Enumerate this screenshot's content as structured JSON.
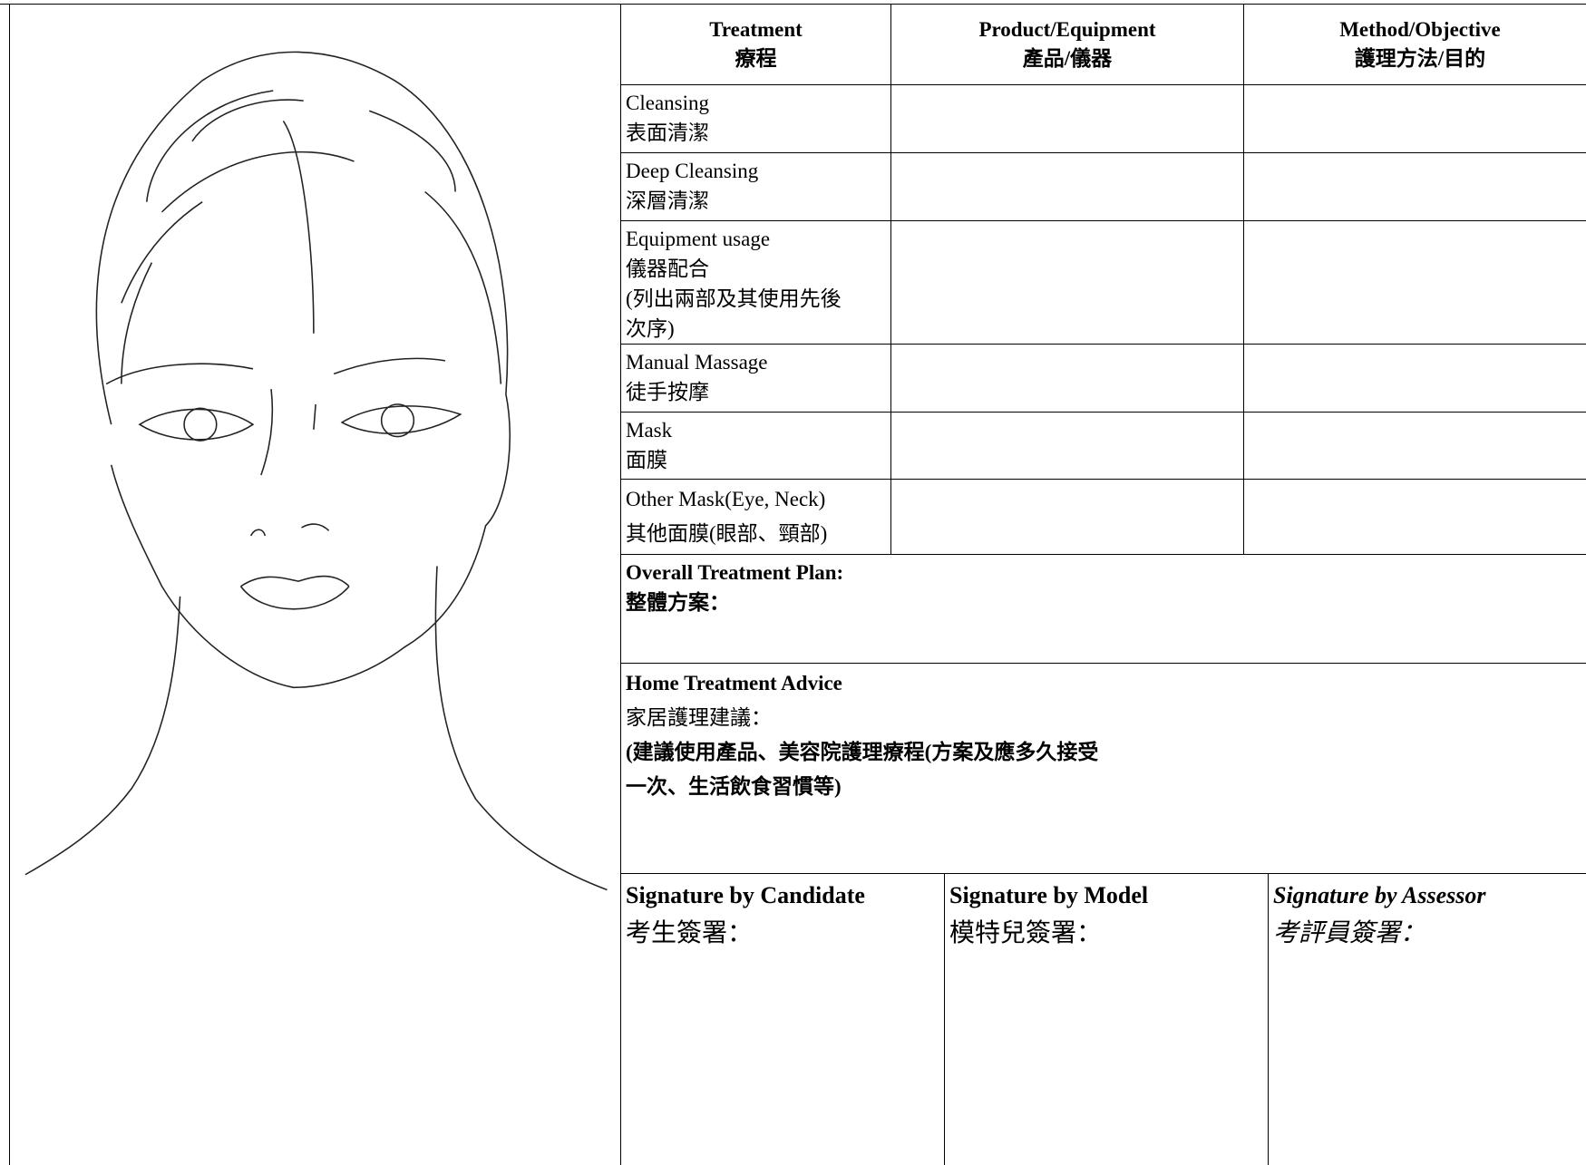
{
  "table": {
    "header": [
      [
        "Treatment",
        "療程"
      ],
      [
        "Product/Equipment",
        "產品/儀器"
      ],
      [
        "Method/Objective",
        "護理方法/目的"
      ]
    ],
    "rows": [
      [
        "Cleansing",
        "表面清潔"
      ],
      [
        "Deep Cleansing",
        "深層清潔"
      ],
      [
        "Equipment usage",
        "儀器配合",
        "(列出兩部及其使用先後",
        "次序)"
      ],
      [
        "Manual Massage",
        "徒手按摩"
      ],
      [
        "Mask",
        "面膜"
      ],
      [
        "Other Mask(Eye, Neck)",
        "其他面膜(眼部、頸部)"
      ]
    ]
  },
  "overall_plan": {
    "label": "Overall Treatment Plan:",
    "label_zh": "整體方案："
  },
  "home_advice": {
    "label": "Home Treatment Advice",
    "label_zh": "家居護理建議：",
    "line1": "(建議使用產品、美容院護理療程(方案及應多久接受",
    "line2": "一次、生活飲食習慣等)"
  },
  "signatures": [
    [
      "Signature by Candidate",
      "考生簽署："
    ],
    [
      "Signature by Model",
      "模特兒簽署："
    ],
    [
      "Signature by Assessor",
      "考評員簽署："
    ]
  ]
}
